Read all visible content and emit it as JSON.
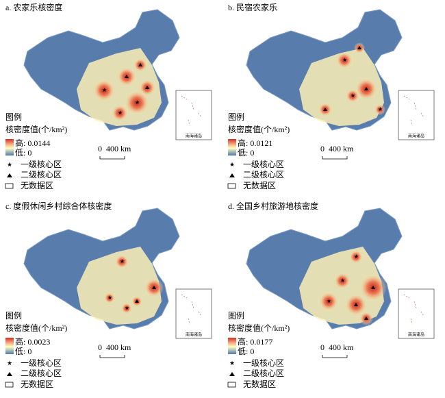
{
  "panels": [
    {
      "title": "a. 农家乐核密度",
      "legend": {
        "title": "图例",
        "subtitle": "核密度值(个/km²)",
        "high": "高: 0.0144",
        "low": "低: 0",
        "items": [
          "一级核心区",
          "二级核心区",
          "无数据区"
        ]
      },
      "scale": "0  400 km",
      "inset_label": "南海诸岛"
    },
    {
      "title": "b. 民宿农家乐",
      "legend": {
        "title": "图例",
        "subtitle": "核密度值(个/km²)",
        "high": "高: 0.0121",
        "low": "低: 0",
        "items": [
          "一级核心区",
          "二级核心区",
          "无数据区"
        ]
      },
      "scale": "0  400 km",
      "inset_label": "南海诸岛"
    },
    {
      "title": "c. 度假休闲乡村综合体核密度",
      "legend": {
        "title": "图例",
        "subtitle": "核密度值(个/km²)",
        "high": "高: 0.0023",
        "low": "低: 0",
        "items": [
          "一级核心区",
          "二级核心区",
          "无数据区"
        ]
      },
      "scale": "0  400 km",
      "inset_label": "南海诸岛"
    },
    {
      "title": "d. 全国乡村旅游地核密度",
      "legend": {
        "title": "图例",
        "subtitle": "核密度值(个/km²)",
        "high": "高: 0.0177",
        "low": "低: 0",
        "items": [
          "一级核心区",
          "二级核心区",
          "无数据区"
        ]
      },
      "scale": "0  400 km",
      "inset_label": "南海诸岛"
    }
  ]
}
